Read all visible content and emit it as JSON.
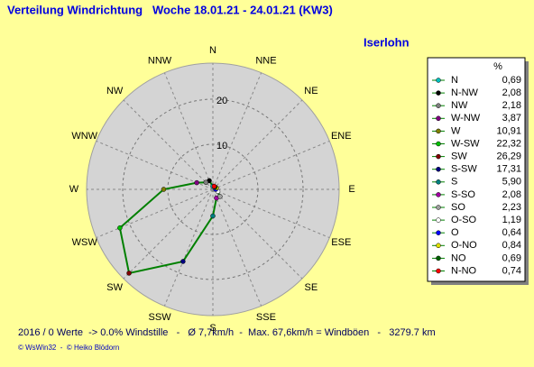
{
  "chart_data": {
    "type": "radar",
    "title": "Verteilung Windrichtung   Woche 18.01.21 - 24.01.21 (KW3)",
    "subtitle": "Iserlohn",
    "categories": [
      "N",
      "NNW",
      "NW",
      "WNW",
      "W",
      "WSW",
      "SW",
      "SSW",
      "S",
      "SSE",
      "SE",
      "ESE",
      "E",
      "ENE",
      "NE",
      "NNE"
    ],
    "legend_title": "%",
    "legend_names": [
      "N",
      "N-NW",
      "NW",
      "W-NW",
      "W",
      "W-SW",
      "SW",
      "S-SW",
      "S",
      "S-SO",
      "SO",
      "O-SO",
      "O",
      "O-NO",
      "NO",
      "N-NO"
    ],
    "colors": [
      "#00c0c0",
      "#000000",
      "#808080",
      "#800080",
      "#808000",
      "#00c000",
      "#800000",
      "#000080",
      "#008080",
      "#a000a0",
      "#a0a0a0",
      "#ffffff",
      "#0000ff",
      "#e0e000",
      "#006000",
      "#ff0000"
    ],
    "values": [
      0.69,
      2.08,
      2.18,
      3.87,
      10.91,
      22.32,
      26.29,
      17.31,
      5.9,
      2.08,
      2.23,
      1.19,
      0.64,
      0.84,
      0.69,
      0.74
    ],
    "value_labels": [
      "0,69",
      "2,08",
      "2,18",
      "3,87",
      "10,91",
      "22,32",
      "26,29",
      "17,31",
      "5,90",
      "2,08",
      "2,23",
      "1,19",
      "0,64",
      "0,84",
      "0,69",
      "0,74"
    ],
    "line_color": "#008000",
    "rlim": [
      0,
      28
    ],
    "rticks": [
      10,
      20
    ],
    "footer": "2016 / 0 Werte  -> 0.0% Windstille   -   Ø 7,7km/h  -  Max. 67,6km/h = Windböen   -   3279.7 km",
    "credit": "© WsWin32  -  © Heiko Blödorn"
  }
}
